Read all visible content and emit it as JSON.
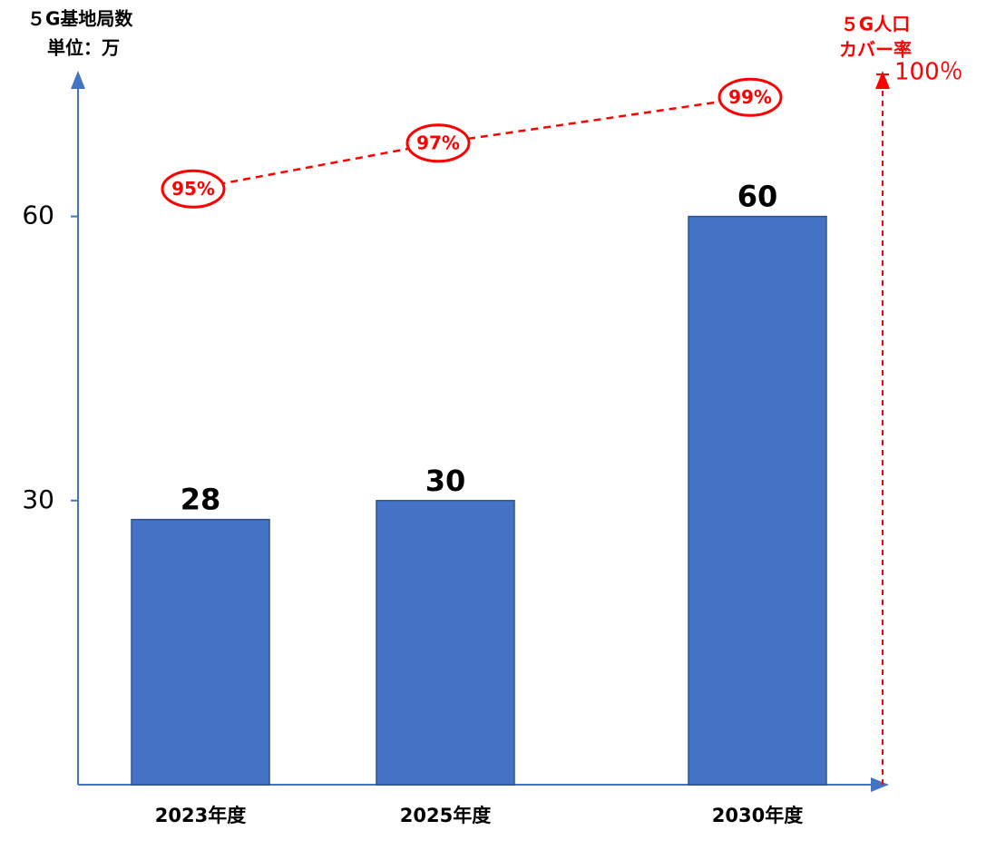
{
  "chart_data": {
    "type": "bar_line",
    "y_label": [
      "５G基地局数",
      "単位：万"
    ],
    "y2_label": [
      "５G人口",
      "カバー率"
    ],
    "categories": [
      "2023年度",
      "2025年度",
      "2030年度"
    ],
    "series": [
      {
        "type": "bar",
        "color": "#4472c4",
        "values": [
          28,
          30,
          60
        ]
      },
      {
        "type": "line",
        "axis": "y2",
        "color": "#ff0000",
        "values": [
          95,
          97,
          99
        ],
        "value_labels": [
          "95%",
          "97%",
          "99%"
        ]
      }
    ],
    "ylim": [
      0,
      75
    ],
    "yticks": [
      30,
      60
    ],
    "y2lim": [
      69,
      100
    ],
    "y2ticks": [
      {
        "value": 100,
        "label": "100％"
      }
    ]
  }
}
